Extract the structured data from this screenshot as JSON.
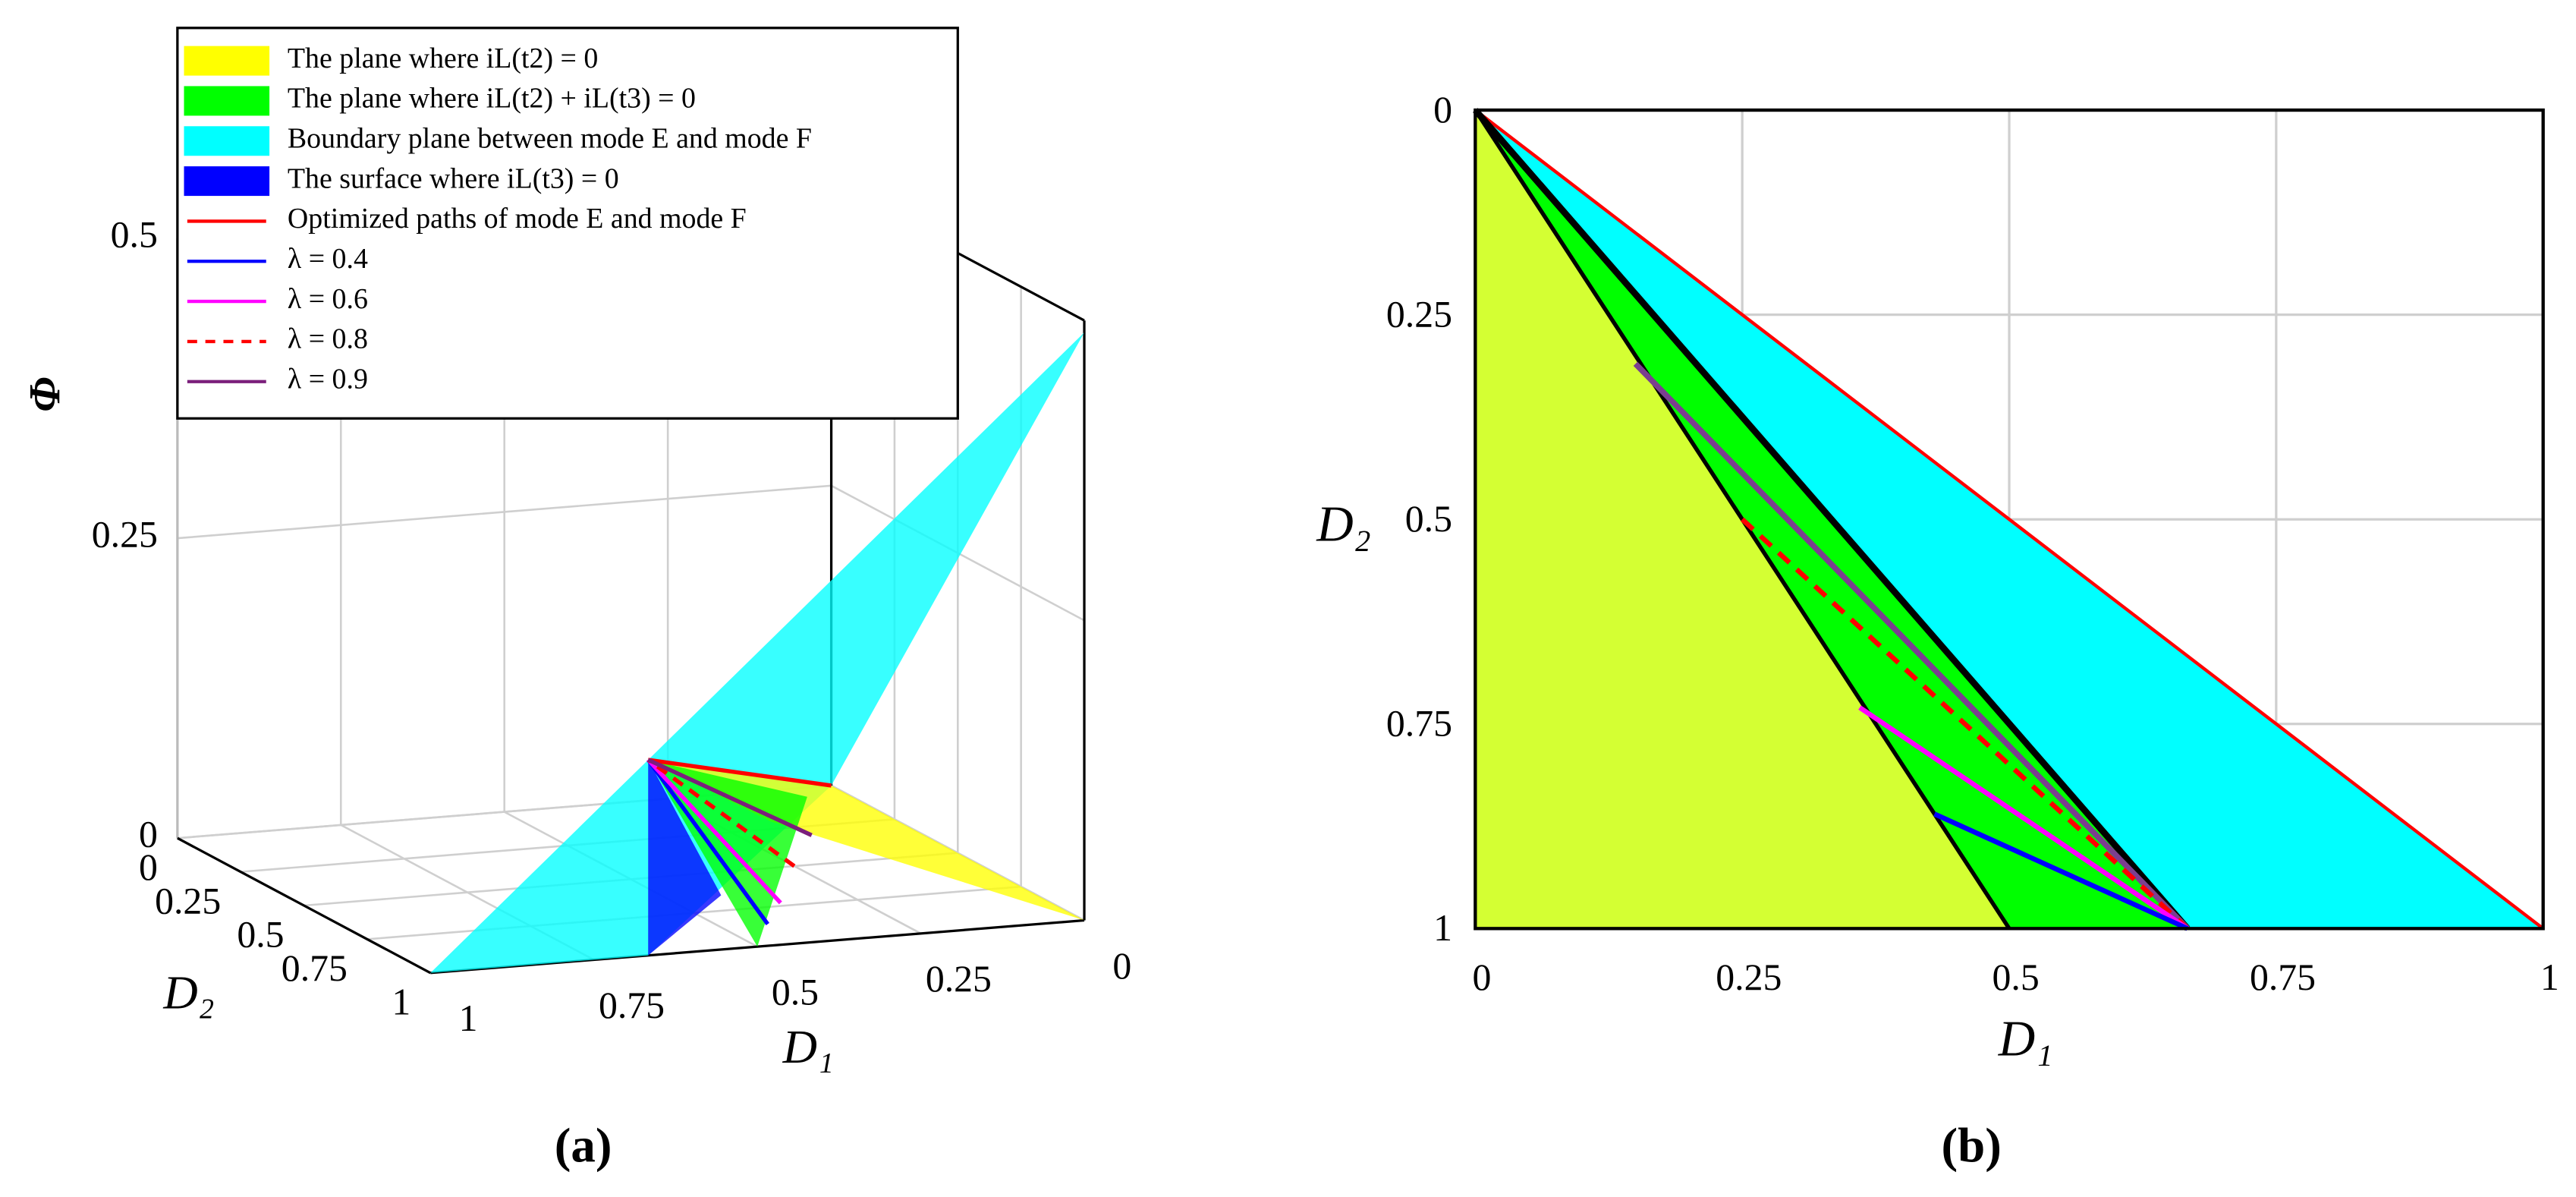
{
  "chart_data": [
    {
      "type": "surface3d",
      "caption": "(a)",
      "xlabel": "D₁",
      "ylabel": "D₂",
      "zlabel": "Φ",
      "xlim": [
        0,
        1
      ],
      "ylim": [
        0,
        1
      ],
      "zlim": [
        0,
        0.5
      ],
      "xticks": [
        0,
        0.25,
        0.5,
        0.75,
        1
      ],
      "yticks": [
        0,
        0.25,
        0.5,
        0.75,
        1
      ],
      "zticks": [
        0,
        0.25,
        0.5
      ],
      "grid": true,
      "legend_position": "upper left",
      "surfaces": [
        {
          "name": "The plane where iL(t2) = 0",
          "color": "#ffff00",
          "x": [
            0.667,
            0,
            0,
            0.17
          ],
          "y": [
            1,
            0,
            1,
            0.2
          ],
          "z": [
            0.163,
            0,
            0,
            0
          ]
        },
        {
          "name": "The plane where iL(t2) + iL(t3) = 0",
          "color": "#00ff00",
          "x": [
            0.667,
            0.06,
            0.5
          ],
          "y": [
            1,
            0.06,
            1
          ],
          "z": [
            0.163,
            0,
            0
          ]
        },
        {
          "name": "Boundary plane between mode E and mode F",
          "color": "#00ffff",
          "x": [
            1,
            0.667,
            0,
            0,
            0.667
          ],
          "y": [
            1,
            1,
            1,
            0,
            1
          ],
          "z": [
            0,
            0.163,
            0.49,
            0,
            0
          ]
        },
        {
          "name": "The surface where iL(t3) = 0",
          "color": "#0000ff",
          "x": [
            0.667,
            0.667,
            0.42
          ],
          "y": [
            1,
            1,
            0.65
          ],
          "z": [
            0.163,
            0,
            0
          ]
        }
      ],
      "series": [
        {
          "name": "Optimized paths of mode E and mode F",
          "color": "#ff0000",
          "x": [
            0.667,
            0
          ],
          "y": [
            1,
            0
          ],
          "z": [
            0.163,
            0
          ]
        },
        {
          "name": "λ = 0.4",
          "color": "#0000ff",
          "x": [
            0.43,
            0.667
          ],
          "y": [
            0.86,
            1
          ],
          "z": [
            0,
            0.163
          ]
        },
        {
          "name": "λ = 0.6",
          "color": "#ff00ff",
          "x": [
            0.36,
            0.667
          ],
          "y": [
            0.73,
            1
          ],
          "z": [
            0,
            0.163
          ]
        },
        {
          "name": "λ = 0.8",
          "color": "#ff0000",
          "dash": true,
          "x": [
            0.25,
            0.667
          ],
          "y": [
            0.5,
            1
          ],
          "z": [
            0,
            0.163
          ]
        },
        {
          "name": "λ = 0.9",
          "color": "#7b1f7b",
          "x": [
            0.15,
            0.667
          ],
          "y": [
            0.31,
            1
          ],
          "z": [
            0,
            0.163
          ]
        }
      ]
    },
    {
      "type": "area2d",
      "caption": "(b)",
      "xlabel": "D₁",
      "ylabel": "D₂",
      "xlim": [
        0,
        1
      ],
      "ylim": [
        1,
        0
      ],
      "xticks": [
        0,
        0.25,
        0.5,
        0.75,
        1
      ],
      "yticks": [
        0,
        0.25,
        0.5,
        0.75,
        1
      ],
      "grid": true,
      "regions": [
        {
          "color": "#d4ff33",
          "x": [
            0,
            0.5,
            0
          ],
          "y": [
            0,
            1,
            1
          ]
        },
        {
          "color": "#00ff00",
          "x": [
            0,
            0.667,
            0.5
          ],
          "y": [
            0,
            1,
            1
          ]
        },
        {
          "color": "#00ffff",
          "x": [
            0,
            1,
            0.667
          ],
          "y": [
            0,
            1,
            1
          ]
        }
      ],
      "series": [
        {
          "color": "#ff0000",
          "linewidth": 2,
          "x": [
            0,
            1
          ],
          "y": [
            0,
            1
          ]
        },
        {
          "color": "#000000",
          "linewidth": 2.5,
          "x": [
            0,
            0.5
          ],
          "y": [
            0,
            1
          ]
        },
        {
          "color": "#000000",
          "linewidth": 4,
          "x": [
            0,
            0.667
          ],
          "y": [
            0,
            1
          ]
        },
        {
          "color": "#7b3f8f",
          "linewidth": 3.5,
          "x": [
            0.15,
            0.667
          ],
          "y": [
            0.31,
            1
          ]
        },
        {
          "color": "#ff0000",
          "linewidth": 3,
          "dash": true,
          "x": [
            0.25,
            0.667
          ],
          "y": [
            0.5,
            1
          ]
        },
        {
          "color": "#ff00ff",
          "linewidth": 3,
          "x": [
            0.36,
            0.667
          ],
          "y": [
            0.73,
            1
          ]
        },
        {
          "color": "#0000ff",
          "linewidth": 3,
          "x": [
            0.43,
            0.667
          ],
          "y": [
            0.86,
            1
          ]
        }
      ]
    }
  ]
}
